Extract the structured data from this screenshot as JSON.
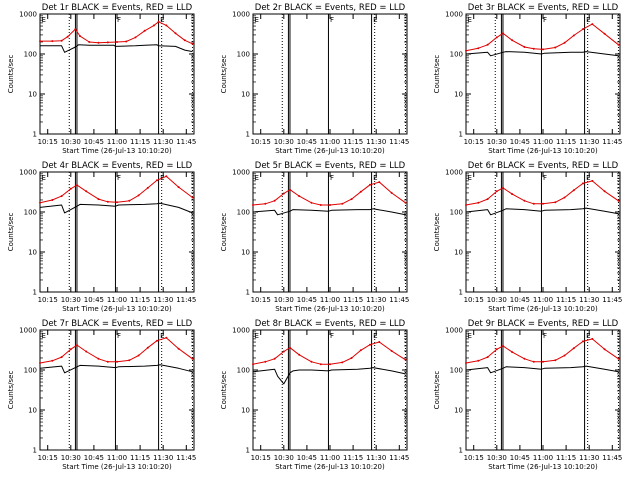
{
  "figure": {
    "background": "#ffffff",
    "black_color": "#000000",
    "red_color": "#e00000"
  },
  "x_ticks": [
    "10:15",
    "10:30",
    "10:45",
    "11:00",
    "11:15",
    "11:30",
    "11:45"
  ],
  "x_label": "Start Time (26-Jul-13 10:10:20)",
  "y_label": "Counts/sec",
  "y_ticks": [
    "1",
    "10",
    "100",
    "1000"
  ],
  "chart_data": [
    {
      "type": "line",
      "title": "Det 1r BLACK = Events, RED = LLD",
      "xlim": [
        "10:10",
        "11:50"
      ],
      "ylim": [
        1,
        1000
      ],
      "y_scale": "log",
      "markers": {
        "solid": [
          "10:33",
          "10:34",
          "10:59",
          "11:27"
        ],
        "dotted": [
          "10:29",
          "11:29",
          "11:49"
        ],
        "letters": [
          "E",
          "F",
          "E"
        ]
      },
      "series": [
        {
          "color": "red",
          "x": [
            "10:10",
            "10:18",
            "10:24",
            "10:28",
            "10:33",
            "10:36",
            "10:42",
            "10:48",
            "10:54",
            "11:00",
            "11:06",
            "11:12",
            "11:18",
            "11:24",
            "11:27",
            "11:32",
            "11:38",
            "11:44",
            "11:49"
          ],
          "values": [
            210,
            210,
            215,
            270,
            420,
            280,
            200,
            190,
            195,
            200,
            205,
            260,
            380,
            520,
            640,
            520,
            330,
            220,
            180
          ]
        },
        {
          "color": "black",
          "x": [
            "10:10",
            "10:24",
            "10:26",
            "10:33",
            "10:35",
            "10:42",
            "10:58",
            "10:59",
            "11:12",
            "11:18",
            "11:26",
            "11:27",
            "11:38",
            "11:44",
            "11:49"
          ],
          "values": [
            160,
            160,
            110,
            150,
            170,
            165,
            165,
            155,
            160,
            165,
            170,
            160,
            155,
            125,
            115
          ]
        }
      ]
    },
    {
      "type": "line",
      "title": "Det 2r BLACK = Events, RED = LLD",
      "xlim": [
        "10:10",
        "11:50"
      ],
      "ylim": [
        1,
        1000
      ],
      "y_scale": "log",
      "markers": {
        "solid": [
          "10:33",
          "10:34",
          "10:59",
          "11:27"
        ],
        "dotted": [
          "10:29",
          "11:29",
          "11:49"
        ],
        "letters": [
          "E",
          "F",
          "E"
        ]
      },
      "series": []
    },
    {
      "type": "line",
      "title": "Det 3r BLACK = Events, RED = LLD",
      "xlim": [
        "10:10",
        "11:50"
      ],
      "ylim": [
        1,
        1000
      ],
      "y_scale": "log",
      "markers": {
        "solid": [
          "10:33",
          "10:34",
          "10:59",
          "11:27"
        ],
        "dotted": [
          "10:29",
          "11:29",
          "11:49"
        ],
        "letters": [
          "E",
          "F",
          "E"
        ]
      },
      "series": [
        {
          "color": "red",
          "x": [
            "10:10",
            "10:18",
            "10:24",
            "10:30",
            "10:34",
            "10:40",
            "10:48",
            "10:54",
            "11:00",
            "11:08",
            "11:14",
            "11:20",
            "11:26",
            "11:32",
            "11:40",
            "11:49"
          ],
          "values": [
            120,
            140,
            170,
            260,
            330,
            220,
            150,
            135,
            130,
            145,
            190,
            290,
            420,
            560,
            320,
            170
          ]
        },
        {
          "color": "black",
          "x": [
            "10:10",
            "10:24",
            "10:26",
            "10:34",
            "10:36",
            "10:48",
            "10:59",
            "11:01",
            "11:18",
            "11:26",
            "11:28",
            "11:40",
            "11:49"
          ],
          "values": [
            100,
            110,
            90,
            110,
            115,
            110,
            100,
            105,
            110,
            110,
            115,
            100,
            90
          ]
        }
      ]
    },
    {
      "type": "line",
      "title": "Det 4r BLACK = Events, RED = LLD",
      "xlim": [
        "10:10",
        "11:50"
      ],
      "ylim": [
        1,
        1000
      ],
      "y_scale": "log",
      "markers": {
        "solid": [
          "10:33",
          "10:34",
          "10:59",
          "11:27"
        ],
        "dotted": [
          "10:29",
          "11:29",
          "11:49"
        ],
        "letters": [
          "E",
          "F",
          "E"
        ]
      },
      "series": [
        {
          "color": "red",
          "x": [
            "10:10",
            "10:18",
            "10:24",
            "10:30",
            "10:34",
            "10:40",
            "10:48",
            "10:54",
            "11:00",
            "11:08",
            "11:14",
            "11:20",
            "11:26",
            "11:32",
            "11:40",
            "11:49"
          ],
          "values": [
            170,
            200,
            250,
            380,
            470,
            330,
            210,
            180,
            175,
            190,
            260,
            400,
            620,
            780,
            420,
            230
          ]
        },
        {
          "color": "black",
          "x": [
            "10:10",
            "10:24",
            "10:26",
            "10:34",
            "10:36",
            "10:48",
            "10:59",
            "11:01",
            "11:18",
            "11:26",
            "11:28",
            "11:40",
            "11:49"
          ],
          "values": [
            130,
            150,
            95,
            140,
            155,
            150,
            140,
            150,
            155,
            160,
            165,
            130,
            95
          ]
        }
      ]
    },
    {
      "type": "line",
      "title": "Det 5r BLACK = Events, RED = LLD",
      "xlim": [
        "10:10",
        "11:50"
      ],
      "ylim": [
        1,
        1000
      ],
      "y_scale": "log",
      "markers": {
        "solid": [
          "10:33",
          "10:34",
          "10:59",
          "11:27"
        ],
        "dotted": [
          "10:29",
          "11:29",
          "11:49"
        ],
        "letters": [
          "E",
          "F",
          "E"
        ]
      },
      "series": [
        {
          "color": "red",
          "x": [
            "10:10",
            "10:18",
            "10:24",
            "10:30",
            "10:34",
            "10:40",
            "10:48",
            "10:54",
            "11:00",
            "11:08",
            "11:14",
            "11:20",
            "11:26",
            "11:32",
            "11:40",
            "11:49"
          ],
          "values": [
            150,
            160,
            190,
            290,
            360,
            250,
            170,
            150,
            150,
            160,
            210,
            320,
            480,
            560,
            300,
            170
          ]
        },
        {
          "color": "black",
          "x": [
            "10:10",
            "10:24",
            "10:26",
            "10:34",
            "10:36",
            "10:48",
            "10:59",
            "11:01",
            "11:18",
            "11:26",
            "11:28",
            "11:40",
            "11:49"
          ],
          "values": [
            100,
            110,
            85,
            105,
            115,
            110,
            105,
            110,
            115,
            115,
            120,
            100,
            85
          ]
        }
      ]
    },
    {
      "type": "line",
      "title": "Det 6r BLACK = Events, RED = LLD",
      "xlim": [
        "10:10",
        "11:50"
      ],
      "ylim": [
        1,
        1000
      ],
      "y_scale": "log",
      "markers": {
        "solid": [
          "10:33",
          "10:34",
          "10:59",
          "11:27"
        ],
        "dotted": [
          "10:29",
          "11:29",
          "11:49"
        ],
        "letters": [
          "E",
          "F",
          "E"
        ]
      },
      "series": [
        {
          "color": "red",
          "x": [
            "10:10",
            "10:18",
            "10:24",
            "10:30",
            "10:34",
            "10:40",
            "10:48",
            "10:54",
            "11:00",
            "11:08",
            "11:14",
            "11:20",
            "11:26",
            "11:32",
            "11:40",
            "11:49"
          ],
          "values": [
            150,
            170,
            210,
            330,
            400,
            280,
            190,
            160,
            160,
            175,
            230,
            350,
            520,
            600,
            330,
            190
          ]
        },
        {
          "color": "black",
          "x": [
            "10:10",
            "10:24",
            "10:26",
            "10:34",
            "10:36",
            "10:48",
            "10:59",
            "11:01",
            "11:18",
            "11:26",
            "11:28",
            "11:40",
            "11:49"
          ],
          "values": [
            100,
            115,
            85,
            110,
            120,
            115,
            105,
            110,
            115,
            120,
            125,
            105,
            90
          ]
        }
      ]
    },
    {
      "type": "line",
      "title": "Det 7r BLACK = Events, RED = LLD",
      "xlim": [
        "10:10",
        "11:50"
      ],
      "ylim": [
        1,
        1000
      ],
      "y_scale": "log",
      "markers": {
        "solid": [
          "10:33",
          "10:34",
          "10:59",
          "11:27"
        ],
        "dotted": [
          "10:29",
          "11:29",
          "11:49"
        ],
        "letters": [
          "E",
          "F",
          "E"
        ]
      },
      "series": [
        {
          "color": "red",
          "x": [
            "10:10",
            "10:18",
            "10:24",
            "10:30",
            "10:34",
            "10:40",
            "10:48",
            "10:54",
            "11:00",
            "11:08",
            "11:14",
            "11:20",
            "11:26",
            "11:32",
            "11:40",
            "11:49"
          ],
          "values": [
            150,
            170,
            210,
            330,
            420,
            290,
            190,
            160,
            160,
            175,
            230,
            360,
            540,
            640,
            340,
            190
          ]
        },
        {
          "color": "black",
          "x": [
            "10:10",
            "10:24",
            "10:26",
            "10:34",
            "10:36",
            "10:48",
            "10:59",
            "11:01",
            "11:18",
            "11:26",
            "11:28",
            "11:40",
            "11:49"
          ],
          "values": [
            110,
            125,
            85,
            120,
            130,
            125,
            115,
            120,
            125,
            130,
            135,
            110,
            90
          ]
        }
      ]
    },
    {
      "type": "line",
      "title": "Det 8r BLACK = Events, RED = LLD",
      "xlim": [
        "10:10",
        "11:50"
      ],
      "ylim": [
        1,
        1000
      ],
      "y_scale": "log",
      "markers": {
        "solid": [
          "10:33",
          "10:34",
          "10:59",
          "11:27"
        ],
        "dotted": [
          "10:29",
          "11:29",
          "11:49"
        ],
        "letters": [
          "E",
          "F",
          "E"
        ]
      },
      "series": [
        {
          "color": "red",
          "x": [
            "10:10",
            "10:18",
            "10:24",
            "10:30",
            "10:34",
            "10:40",
            "10:48",
            "10:54",
            "11:00",
            "11:08",
            "11:14",
            "11:20",
            "11:26",
            "11:32",
            "11:40",
            "11:49"
          ],
          "values": [
            140,
            160,
            190,
            290,
            360,
            240,
            160,
            140,
            140,
            155,
            200,
            310,
            430,
            500,
            300,
            180
          ]
        },
        {
          "color": "black",
          "x": [
            "10:10",
            "10:24",
            "10:26",
            "10:30",
            "10:34",
            "10:36",
            "10:40",
            "10:48",
            "10:59",
            "11:01",
            "11:18",
            "11:26",
            "11:28",
            "11:40",
            "11:49"
          ],
          "values": [
            90,
            105,
            70,
            45,
            85,
            95,
            100,
            100,
            95,
            100,
            105,
            110,
            115,
            95,
            80
          ]
        }
      ]
    },
    {
      "type": "line",
      "title": "Det 9r BLACK = Events, RED = LLD",
      "xlim": [
        "10:10",
        "11:50"
      ],
      "ylim": [
        1,
        1000
      ],
      "y_scale": "log",
      "markers": {
        "solid": [
          "10:33",
          "10:34",
          "10:59",
          "11:27"
        ],
        "dotted": [
          "10:29",
          "11:29",
          "11:49"
        ],
        "letters": [
          "E",
          "F",
          "E"
        ]
      },
      "series": [
        {
          "color": "red",
          "x": [
            "10:10",
            "10:18",
            "10:24",
            "10:30",
            "10:34",
            "10:40",
            "10:48",
            "10:54",
            "11:00",
            "11:08",
            "11:14",
            "11:20",
            "11:26",
            "11:32",
            "11:40",
            "11:49"
          ],
          "values": [
            150,
            170,
            210,
            330,
            400,
            280,
            190,
            160,
            160,
            175,
            230,
            350,
            520,
            600,
            330,
            190
          ]
        },
        {
          "color": "black",
          "x": [
            "10:10",
            "10:24",
            "10:26",
            "10:34",
            "10:36",
            "10:48",
            "10:59",
            "11:01",
            "11:18",
            "11:26",
            "11:28",
            "11:40",
            "11:49"
          ],
          "values": [
            100,
            115,
            85,
            110,
            120,
            115,
            105,
            110,
            115,
            120,
            125,
            105,
            90
          ]
        }
      ]
    }
  ]
}
